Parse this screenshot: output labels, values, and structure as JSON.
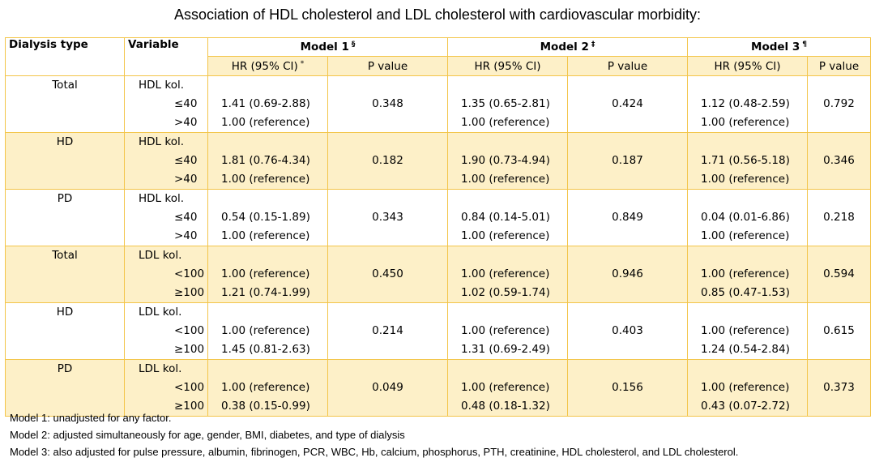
{
  "title": "Association of HDL cholesterol and LDL cholesterol with cardiovascular morbidity:",
  "header": {
    "dialysis_type": "Dialysis type",
    "variable": "Variable",
    "model1": "Model 1",
    "model1_mark": "§",
    "model2": "Model 2",
    "model2_mark": "‡",
    "model3": "Model 3",
    "model3_mark": "¶",
    "hr1": "HR (95% CI)",
    "hr1_mark": "*",
    "p1": "P value",
    "hr2": "HR (95% CI)",
    "p2": "P value",
    "hr3": "HR (95% CI)",
    "p3": "P value"
  },
  "groups": [
    {
      "type": "Total",
      "var": "HDL kol.",
      "levels": [
        "≤40",
        ">40"
      ],
      "m1": [
        "1.41 (0.69-2.88)",
        "1.00 (reference)"
      ],
      "p1": "0.348",
      "m2": [
        "1.35 (0.65-2.81)",
        "1.00 (reference)"
      ],
      "p2": "0.424",
      "m3": [
        "1.12 (0.48-2.59)",
        "1.00 (reference)"
      ],
      "p3": "0.792"
    },
    {
      "type": "HD",
      "var": "HDL kol.",
      "levels": [
        "≤40",
        ">40"
      ],
      "m1": [
        "1.81 (0.76-4.34)",
        "1.00 (reference)"
      ],
      "p1": "0.182",
      "m2": [
        "1.90 (0.73-4.94)",
        "1.00 (reference)"
      ],
      "p2": "0.187",
      "m3": [
        "1.71 (0.56-5.18)",
        "1.00 (reference)"
      ],
      "p3": "0.346"
    },
    {
      "type": "PD",
      "var": "HDL kol.",
      "levels": [
        "≤40",
        ">40"
      ],
      "m1": [
        "0.54 (0.15-1.89)",
        "1.00 (reference)"
      ],
      "p1": "0.343",
      "m2": [
        "0.84 (0.14-5.01)",
        "1.00 (reference)"
      ],
      "p2": "0.849",
      "m3": [
        "0.04 (0.01-6.86)",
        "1.00 (reference)"
      ],
      "p3": "0.218"
    },
    {
      "type": "Total",
      "var": "LDL kol.",
      "levels": [
        "<100",
        "≥100"
      ],
      "m1": [
        "1.00 (reference)",
        "1.21 (0.74-1.99)"
      ],
      "p1": "0.450",
      "m2": [
        "1.00 (reference)",
        "1.02 (0.59-1.74)"
      ],
      "p2": "0.946",
      "m3": [
        "1.00 (reference)",
        "0.85 (0.47-1.53)"
      ],
      "p3": "0.594"
    },
    {
      "type": "HD",
      "var": "LDL kol.",
      "levels": [
        "<100",
        "≥100"
      ],
      "m1": [
        "1.00 (reference)",
        "1.45 (0.81-2.63)"
      ],
      "p1": "0.214",
      "m2": [
        "1.00 (reference)",
        "1.31 (0.69-2.49)"
      ],
      "p2": "0.403",
      "m3": [
        "1.00 (reference)",
        "1.24 (0.54-2.84)"
      ],
      "p3": "0.615"
    },
    {
      "type": "PD",
      "var": "LDL kol.",
      "levels": [
        "<100",
        "≥100"
      ],
      "m1": [
        "1.00 (reference)",
        "0.38 (0.15-0.99)"
      ],
      "p1": "0.049",
      "m2": [
        "1.00 (reference)",
        "0.48 (0.18-1.32)"
      ],
      "p2": "0.156",
      "m3": [
        "1.00 (reference)",
        "0.43 (0.07-2.72)"
      ],
      "p3": "0.373"
    }
  ],
  "notes": [
    "Model 1: unadjusted for any factor.",
    "Model 2: adjusted simultaneously for age, gender, BMI, diabetes, and type of dialysis",
    "Model 3: also adjusted for pulse pressure, albumin, fibrinogen, PCR, WBC, Hb, calcium, phosphorus, PTH, creatinine, HDL cholesterol, and LDL cholesterol."
  ],
  "colors": {
    "border": "#f3c54a",
    "band": "#fdf0c8"
  }
}
